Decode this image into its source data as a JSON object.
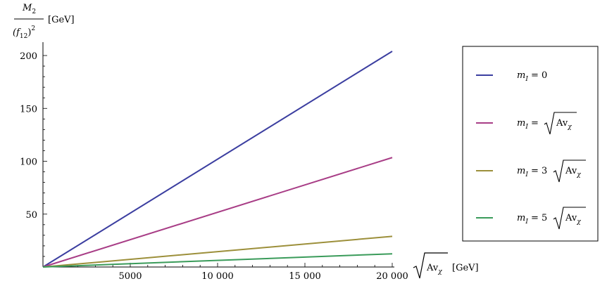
{
  "chart_data": {
    "type": "line",
    "x_range": [
      0,
      20000
    ],
    "y_range": [
      0,
      205
    ],
    "x_ticks": [
      5000,
      10000,
      15000,
      20000
    ],
    "x_tick_labels": [
      "5000",
      "10 000",
      "15 000",
      "20 000"
    ],
    "y_ticks": [
      50,
      100,
      150,
      200
    ],
    "y_tick_labels": [
      "50",
      "100",
      "150",
      "200"
    ],
    "y_label": {
      "numerator": "M",
      "numerator_sub": "2",
      "denominator_open": "(f",
      "denominator_sub": "12",
      "denominator_close": ")",
      "denominator_sup": "2",
      "unit": "[GeV]"
    },
    "x_label": {
      "root_text": "Av",
      "root_sub": "χ",
      "unit": "[GeV]"
    },
    "grid": false,
    "legend_position": "right",
    "series": [
      {
        "legend_text": "m",
        "legend_sub": "I",
        "legend_eq": " = 0",
        "legend_coef": "",
        "legend_root": false,
        "color": "#3b3ea0",
        "x": [
          0,
          20000
        ],
        "y": [
          0,
          204
        ]
      },
      {
        "legend_text": "m",
        "legend_sub": "I",
        "legend_eq": " = ",
        "legend_coef": "",
        "legend_root": true,
        "color": "#a83d86",
        "x": [
          0,
          20000
        ],
        "y": [
          0,
          103.5
        ]
      },
      {
        "legend_text": "m",
        "legend_sub": "I",
        "legend_eq": " = 3",
        "legend_coef": "3",
        "legend_root": true,
        "color": "#9c8f3a",
        "x": [
          0,
          20000
        ],
        "y": [
          0,
          29
        ]
      },
      {
        "legend_text": "m",
        "legend_sub": "I",
        "legend_eq": " = 5",
        "legend_coef": "5",
        "legend_root": true,
        "color": "#3a9b5a",
        "x": [
          0,
          20000
        ],
        "y": [
          0,
          12.5
        ]
      }
    ],
    "legend_root_text": "Av",
    "legend_root_sub": "χ"
  }
}
